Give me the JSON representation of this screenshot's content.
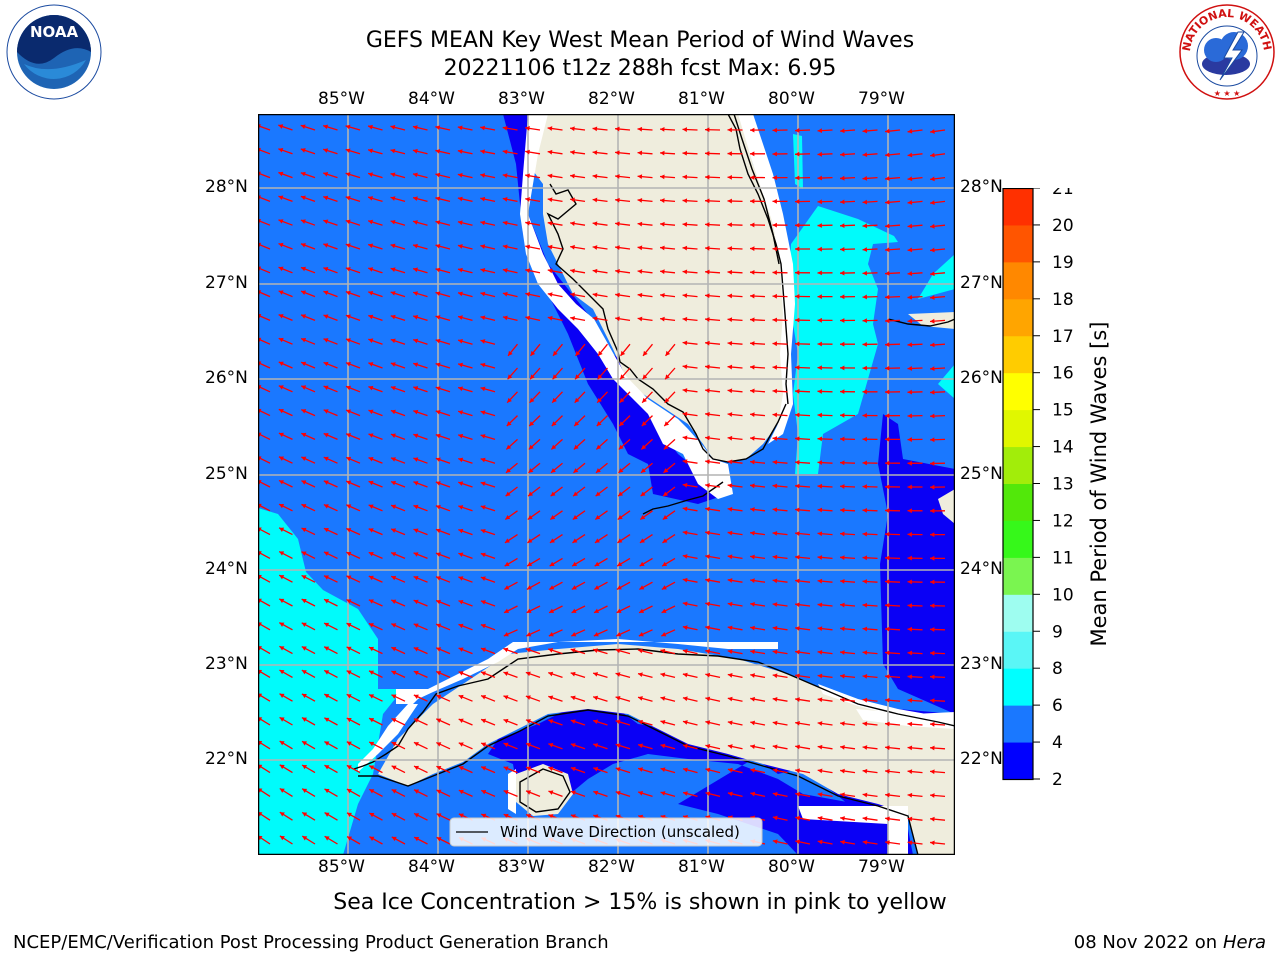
{
  "header": {
    "title_line1": "GEFS MEAN Key West Mean Period of Wind Waves",
    "title_line2": "20221106 t12z 288h fcst   Max: 6.95"
  },
  "map": {
    "lon_labels": [
      "85°W",
      "84°W",
      "83°W",
      "82°W",
      "81°W",
      "80°W",
      "79°W"
    ],
    "lat_labels": [
      "28°N",
      "27°N",
      "26°N",
      "25°N",
      "24°N",
      "23°N",
      "22°N"
    ],
    "legend_label": "Wind Wave Direction (unscaled)",
    "colors": {
      "ocean_4_6": "#1a78ff",
      "ocean_2_4": "#0a00f5",
      "ocean_6_8": "#00fbfb",
      "land": "#efeddd",
      "arrow": "#ff0000",
      "grid": "#b4b4b4"
    }
  },
  "colorbar": {
    "label": "Mean Period of Wind Waves [s]",
    "ticks": [
      "2",
      "4",
      "6",
      "8",
      "9",
      "10",
      "11",
      "12",
      "13",
      "14",
      "15",
      "16",
      "17",
      "18",
      "19",
      "20",
      "21"
    ],
    "colors": [
      "#0000ff",
      "#1a78ff",
      "#00ffff",
      "#5af6f6",
      "#9efdf0",
      "#7af550",
      "#36f81a",
      "#52e80a",
      "#a2ed0a",
      "#e0f700",
      "#ffff00",
      "#ffcc00",
      "#ffa500",
      "#ff8800",
      "#ff5500",
      "#ff3000",
      "#ff0000"
    ]
  },
  "logos": {
    "noaa_text": "NOAA",
    "nws_text": "NATIONAL WEATHER SERVICE"
  },
  "footer": {
    "sea_ice_note": "Sea Ice Concentration > 15% is shown in pink to yellow",
    "branch": "NCEP/EMC/Verification Post Processing Product Generation Branch",
    "date": "08 Nov 2022 on",
    "machine": "Hera"
  }
}
